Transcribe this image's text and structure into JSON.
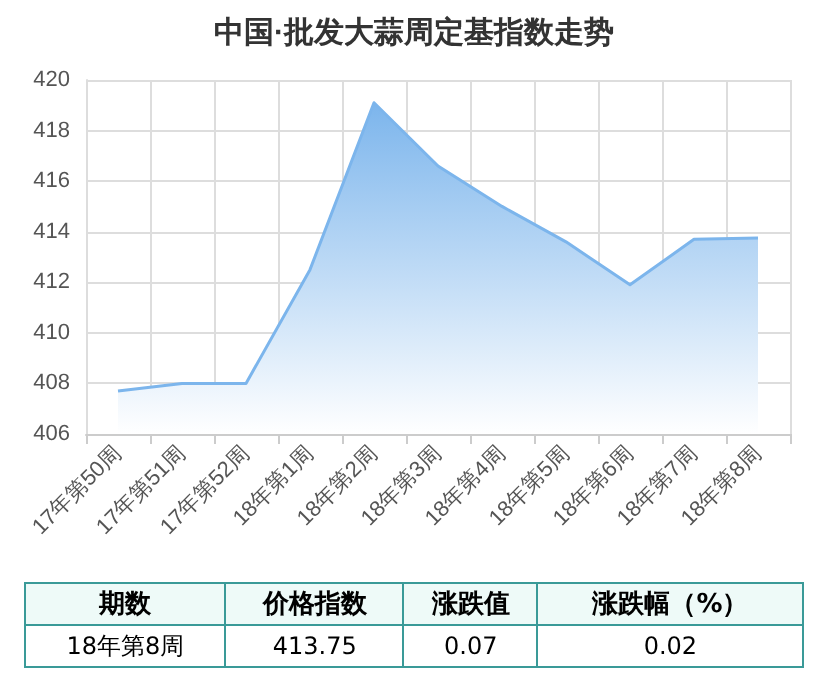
{
  "chart_data": {
    "type": "area",
    "title": "中国·批发大蒜周定基指数走势",
    "categories": [
      "17年第50周",
      "17年第51周",
      "17年第52周",
      "18年第1周",
      "18年第2周",
      "18年第3周",
      "18年第4周",
      "18年第5周",
      "18年第6周",
      "18年第7周",
      "18年第8周"
    ],
    "series": [
      {
        "color": "#7cb5ec",
        "values": [
          407.7,
          408.0,
          408.0,
          412.5,
          419.1,
          416.6,
          415.0,
          413.6,
          411.9,
          413.7,
          413.75
        ]
      }
    ],
    "ylim": [
      406,
      420
    ],
    "yticks": [
      406,
      408,
      410,
      412,
      414,
      416,
      418,
      420
    ],
    "grid": true,
    "marker": "none",
    "annotations": [
      "期数",
      "价格指数",
      "涨跌值",
      "涨跌幅（%）",
      "18年第8周",
      "413.75",
      "0.07",
      "0.02"
    ]
  }
}
